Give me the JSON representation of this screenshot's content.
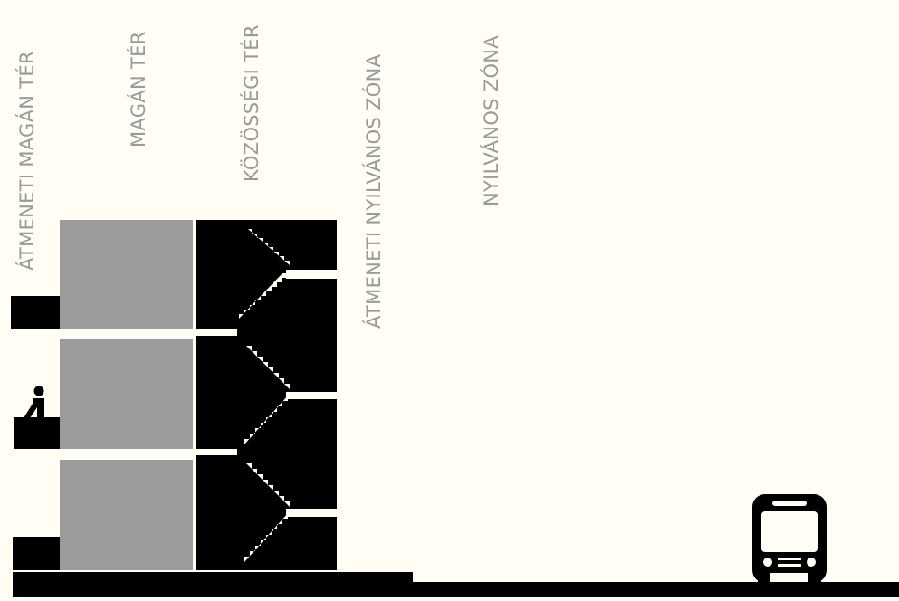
{
  "zones": [
    {
      "id": "transitional-private",
      "label": "ÁTMENETI MAGÁN TÉR"
    },
    {
      "id": "private",
      "label": "MAGÁN TÉR"
    },
    {
      "id": "community",
      "label": "KÖZÖSSÉGI TÉR"
    },
    {
      "id": "transitional-public",
      "label": "ÁTMENETI NYILVÁNOS ZÓNA"
    },
    {
      "id": "public",
      "label": "NYILVÁNOS ZÓNA"
    }
  ],
  "colors": {
    "background": "#fffdf4",
    "private_space": "#9b9b9b",
    "structure": "#000000",
    "label_text": "#9a9a9a"
  },
  "icons": {
    "person": "person-on-balcony-icon",
    "bus": "bus-icon"
  }
}
